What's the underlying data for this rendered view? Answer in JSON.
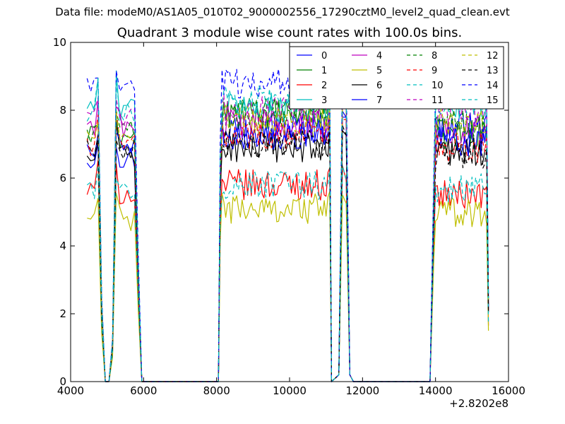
{
  "suptitle": "Data file: modeM0/AS1A05_010T02_9000002556_17290cztM0_level2_quad_clean.evt",
  "chart_data": {
    "type": "line",
    "title": "Quadrant 3 module wise count rates with 100.0s bins.",
    "xlabel": "",
    "ylabel": "",
    "x_offset_label": "+2.8202e8",
    "xlim": [
      4000,
      16000
    ],
    "ylim": [
      0,
      10
    ],
    "xticks": [
      4000,
      6000,
      8000,
      10000,
      12000,
      14000,
      16000
    ],
    "yticks": [
      0,
      2,
      4,
      6,
      8,
      10
    ],
    "legend_position": "top-right",
    "legend_columns": 4,
    "x_segments": [
      [
        4450,
        4550,
        4650,
        4750,
        4850,
        4950,
        5050,
        5150,
        5250,
        5350,
        5450,
        5550,
        5650,
        5750,
        5850,
        5950,
        6050,
        6150
      ],
      [
        6150,
        7000,
        8000,
        8050
      ],
      [
        8050,
        8100,
        8150,
        8200,
        8250,
        8300,
        8350,
        8400,
        8450,
        8500,
        8550,
        8600,
        8650,
        8700,
        8750,
        8800,
        8850,
        8900,
        8950,
        9000,
        9050,
        9100,
        9150,
        9200,
        9250,
        9300,
        9350,
        9400,
        9450,
        9500,
        9550,
        9600,
        9650,
        9700,
        9750,
        9800,
        9850,
        9900,
        9950,
        10000,
        10050,
        10100,
        10150,
        10200,
        10250,
        10300,
        10350,
        10400,
        10450,
        10500,
        10550,
        10600,
        10650,
        10700,
        10750,
        10800,
        10850,
        10900,
        10950,
        11000,
        11050,
        11100,
        11150
      ],
      [
        11150,
        11350,
        11450,
        11550,
        11650,
        11750,
        11850,
        12000,
        13000,
        13850
      ],
      [
        13850,
        13950,
        14000,
        14050,
        14100,
        14150,
        14200,
        14250,
        14300,
        14350,
        14400,
        14450,
        14500,
        14550,
        14600,
        14650,
        14700,
        14750,
        14800,
        14850,
        14900,
        14950,
        15000,
        15050,
        15100,
        15150,
        15200,
        15250,
        15300,
        15350,
        15400,
        15450
      ]
    ],
    "series": [
      {
        "name": "0",
        "color": "#0000ff",
        "dash": "solid",
        "levels": [
          6.6,
          7.5,
          7.5
        ]
      },
      {
        "name": "1",
        "color": "#008000",
        "dash": "solid",
        "levels": [
          7.2,
          7.9,
          7.3
        ]
      },
      {
        "name": "2",
        "color": "#ff0000",
        "dash": "solid",
        "levels": [
          5.6,
          5.8,
          5.5
        ]
      },
      {
        "name": "3",
        "color": "#00bfbf",
        "dash": "solid",
        "levels": [
          8.1,
          8.1,
          8.2
        ]
      },
      {
        "name": "4",
        "color": "#bf00bf",
        "dash": "solid",
        "levels": [
          7.6,
          7.6,
          7.4
        ]
      },
      {
        "name": "5",
        "color": "#bfbf00",
        "dash": "solid",
        "levels": [
          4.8,
          5.1,
          5.0
        ]
      },
      {
        "name": "6",
        "color": "#000000",
        "dash": "solid",
        "levels": [
          6.6,
          6.9,
          6.8
        ]
      },
      {
        "name": "7",
        "color": "#0000ff",
        "dash": "solid",
        "levels": [
          6.9,
          7.3,
          7.1
        ]
      },
      {
        "name": "8",
        "color": "#008000",
        "dash": "dashed",
        "levels": [
          7.3,
          7.9,
          7.6
        ]
      },
      {
        "name": "9",
        "color": "#ff0000",
        "dash": "dashed",
        "levels": [
          7.0,
          7.3,
          6.9
        ]
      },
      {
        "name": "10",
        "color": "#00bfbf",
        "dash": "dashed",
        "levels": [
          5.6,
          5.8,
          5.7
        ]
      },
      {
        "name": "11",
        "color": "#bf00bf",
        "dash": "dashed",
        "levels": [
          7.7,
          8.0,
          8.0
        ]
      },
      {
        "name": "12",
        "color": "#bfbf00",
        "dash": "dashed",
        "levels": [
          7.1,
          7.7,
          7.6
        ]
      },
      {
        "name": "13",
        "color": "#000000",
        "dash": "dashed",
        "levels": [
          6.8,
          7.0,
          6.7
        ]
      },
      {
        "name": "14",
        "color": "#0000ff",
        "dash": "dashed",
        "levels": [
          8.6,
          8.8,
          8.6
        ]
      },
      {
        "name": "15",
        "color": "#00bfbf",
        "dash": "dashed",
        "levels": [
          8.0,
          8.3,
          8.2
        ]
      }
    ]
  }
}
